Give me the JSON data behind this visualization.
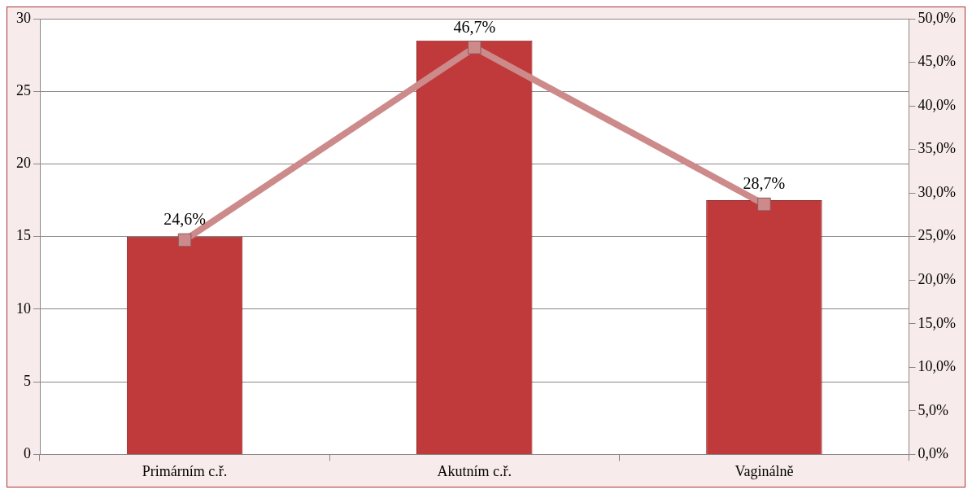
{
  "chart_data": {
    "type": "bar",
    "categories": [
      "Primárním c.ř.",
      "Akutním c.ř.",
      "Vaginálně"
    ],
    "series": [
      {
        "color": "#c0393b",
        "values": [
          15,
          28.5,
          17.5
        ]
      },
      {
        "type": "line",
        "axis": "y2",
        "color": "#cd8a8a",
        "values": [
          24.6,
          46.7,
          28.7
        ],
        "value_labels": [
          "24,6%",
          "46,7%",
          "28,7%"
        ]
      }
    ],
    "ylim": [
      0,
      30
    ],
    "yticks": [
      0,
      5,
      10,
      15,
      20,
      25,
      30
    ],
    "y2lim": [
      0,
      50
    ],
    "y2ticks": [
      {
        "value": 0,
        "label": "0,0%"
      },
      {
        "value": 5,
        "label": "5,0%"
      },
      {
        "value": 10,
        "label": "10,0%"
      },
      {
        "value": 15,
        "label": "15,0%"
      },
      {
        "value": 20,
        "label": "20,0%"
      },
      {
        "value": 25,
        "label": "25,0%"
      },
      {
        "value": 30,
        "label": "30,0%"
      },
      {
        "value": 35,
        "label": "35,0%"
      },
      {
        "value": 40,
        "label": "40,0%"
      },
      {
        "value": 45,
        "label": "45,0%"
      },
      {
        "value": 50,
        "label": "50,0%"
      }
    ],
    "grid": "y",
    "marker": "square",
    "legend": false
  }
}
